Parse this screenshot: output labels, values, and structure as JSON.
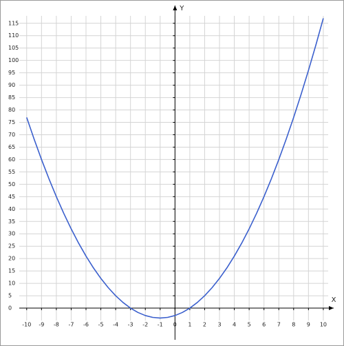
{
  "chart_data": {
    "type": "line",
    "xlabel": "X",
    "ylabel": "Y",
    "x": [
      -10,
      -9.5,
      -9,
      -8.5,
      -8,
      -7.5,
      -7,
      -6.5,
      -6,
      -5.5,
      -5,
      -4.5,
      -4,
      -3.5,
      -3,
      -2.5,
      -2,
      -1.5,
      -1,
      -0.5,
      0,
      0.5,
      1,
      1.5,
      2,
      2.5,
      3,
      3.5,
      4,
      4.5,
      5,
      5.5,
      6,
      6.5,
      7,
      7.5,
      8,
      8.5,
      9,
      9.5,
      10
    ],
    "series": [
      {
        "color": "#3a5fcd",
        "values": [
          77,
          68.25,
          60,
          52.25,
          45,
          38.25,
          32,
          26.25,
          21,
          16.25,
          12,
          8.25,
          5,
          2.25,
          0,
          -1.75,
          -3,
          -3.75,
          -4,
          -3.75,
          -3,
          -1.75,
          0,
          2.25,
          5,
          8.25,
          12,
          16.25,
          21,
          26.25,
          32,
          38.25,
          45,
          52.25,
          60,
          68.25,
          77,
          86.25,
          96,
          106.25,
          117
        ]
      }
    ],
    "xlim": [
      -10.5,
      10.7
    ],
    "ylim": [
      -5,
      118
    ],
    "xticks": [
      -10,
      -9,
      -8,
      -7,
      -6,
      -5,
      -4,
      -3,
      -2,
      -1,
      0,
      1,
      2,
      3,
      4,
      5,
      6,
      7,
      8,
      9,
      10
    ],
    "yticks": [
      0,
      5,
      10,
      15,
      20,
      25,
      30,
      35,
      40,
      45,
      50,
      55,
      60,
      65,
      70,
      75,
      80,
      85,
      90,
      95,
      100,
      105,
      110,
      115
    ],
    "grid": true
  }
}
